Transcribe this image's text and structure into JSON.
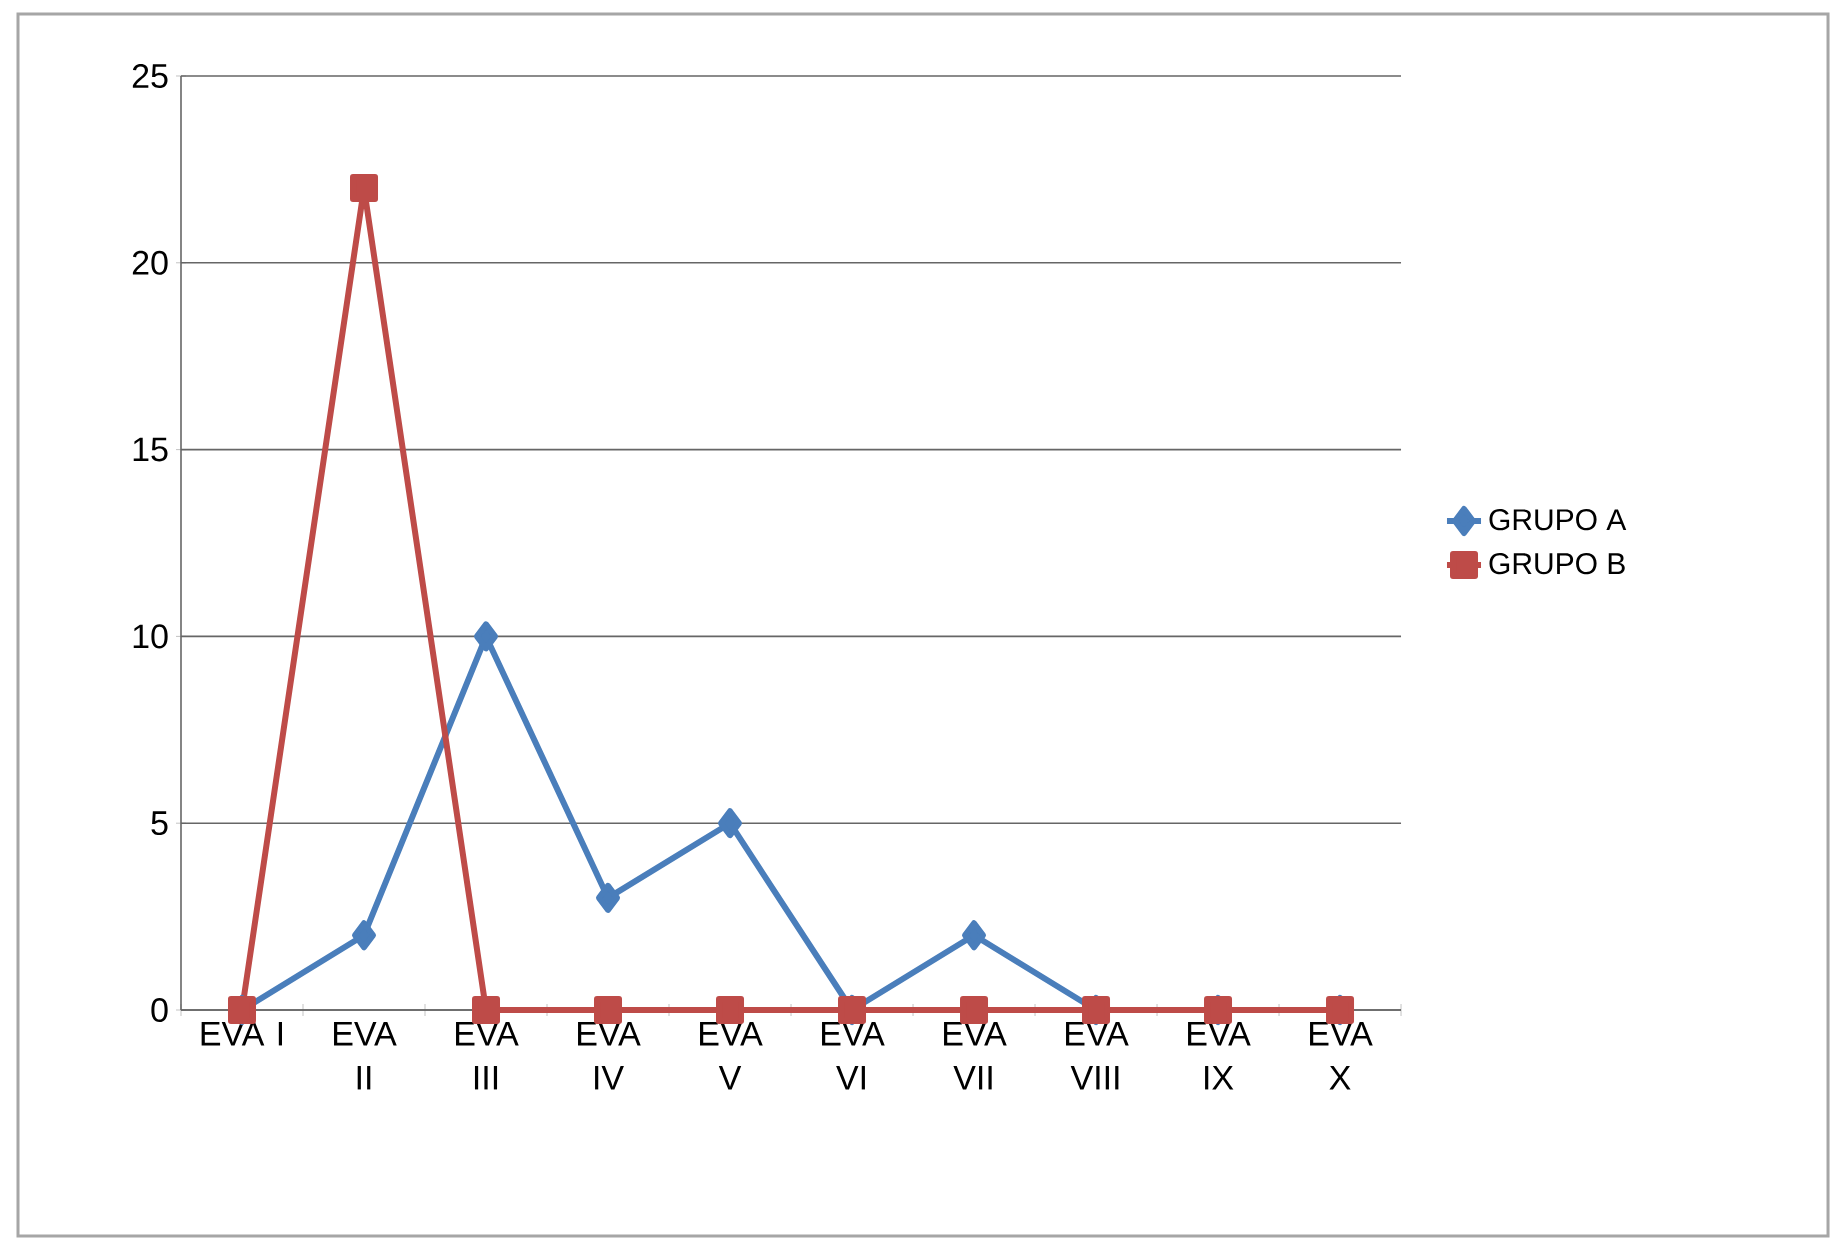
{
  "chart_data": {
    "type": "line",
    "categories": [
      "EVA I",
      "EVA II",
      "EVA III",
      "EVA IV",
      "EVA V",
      "EVA VI",
      "EVA VII",
      "EVA VIII",
      "EVA IX",
      "EVA X"
    ],
    "series": [
      {
        "name": "GRUPO A",
        "color": "#4a7ebb",
        "marker": "diamond",
        "values": [
          0,
          2,
          10,
          3,
          5,
          0,
          2,
          0,
          0,
          0
        ]
      },
      {
        "name": "GRUPO B",
        "color": "#be4b48",
        "marker": "square",
        "values": [
          0,
          22,
          0,
          0,
          0,
          0,
          0,
          0,
          0,
          0
        ]
      }
    ],
    "ylim": [
      0,
      25
    ],
    "yticks": [
      0,
      5,
      10,
      15,
      20,
      25
    ],
    "grid": "y",
    "legend": "right",
    "line_style": "solid"
  }
}
